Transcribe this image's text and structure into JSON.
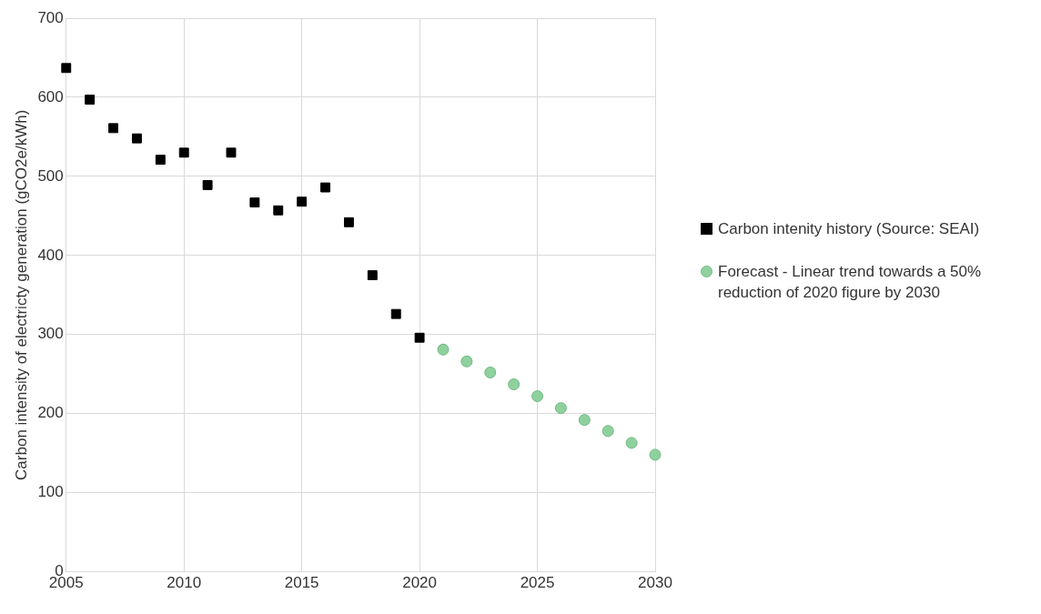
{
  "chart_data": {
    "type": "scatter",
    "ylabel": "Carbon intensity of electricty generation (gCO2e/kWh)",
    "xlim": [
      2005,
      2030
    ],
    "xticks": [
      2005,
      2010,
      2015,
      2020,
      2025,
      2030
    ],
    "ylim": [
      0,
      700
    ],
    "yticks": [
      0,
      100,
      200,
      300,
      400,
      500,
      600,
      700
    ],
    "grid": true,
    "legend": "right",
    "series": [
      {
        "name": "Carbon intenity history (Source: SEAI)",
        "color": "#000000",
        "marker": "square",
        "x": [
          2005,
          2006,
          2007,
          2008,
          2009,
          2010,
          2011,
          2012,
          2013,
          2014,
          2015,
          2016,
          2017,
          2018,
          2019,
          2020
        ],
        "values": [
          637,
          597,
          561,
          548,
          521,
          530,
          489,
          530,
          467,
          457,
          468,
          486,
          442,
          375,
          326,
          296
        ]
      },
      {
        "name": "Forecast - Linear trend towards a 50% reduction of 2020 figure by 2030",
        "color": "#8fd19e",
        "marker": "circle",
        "x": [
          2021,
          2022,
          2023,
          2024,
          2025,
          2026,
          2027,
          2028,
          2029,
          2030
        ],
        "values": [
          281,
          266,
          252,
          237,
          222,
          207,
          192,
          178,
          163,
          148
        ]
      }
    ]
  }
}
